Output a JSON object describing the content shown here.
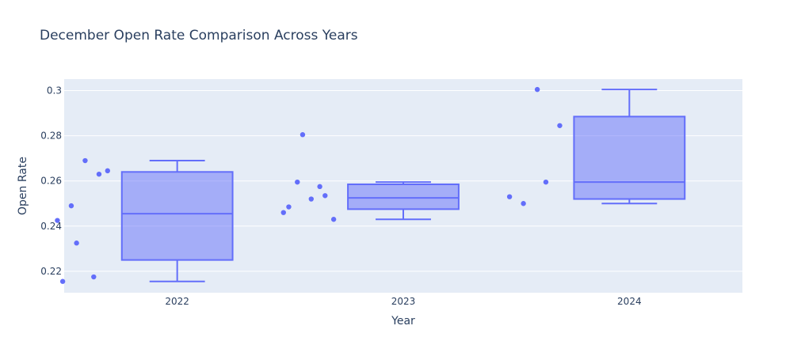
{
  "chart_data": {
    "type": "box",
    "title": "December Open Rate Comparison Across Years",
    "xlabel": "Year",
    "ylabel": "Open Rate",
    "categories": [
      "2022",
      "2023",
      "2024"
    ],
    "ylim": [
      0.2105,
      0.3051
    ],
    "yticks": [
      0.22,
      0.24,
      0.26,
      0.28,
      0.3
    ],
    "ytick_labels": [
      "0.22",
      "0.24",
      "0.26",
      "0.28",
      "0.3"
    ],
    "grid": true,
    "boxpoints": "all",
    "series": [
      {
        "category": "2022",
        "points": [
          0.2425,
          0.2175,
          0.249,
          0.2645,
          0.269,
          0.2155,
          0.263,
          0.2325
        ],
        "min": 0.2155,
        "q1": 0.225,
        "median": 0.2455,
        "q3": 0.264,
        "max": 0.269
      },
      {
        "category": "2023",
        "points": [
          0.246,
          0.2575,
          0.2595,
          0.243,
          0.252,
          0.2485,
          0.2535,
          0.2805
        ],
        "min": 0.243,
        "q1": 0.2475,
        "median": 0.2525,
        "q3": 0.2585,
        "max": 0.2595
      },
      {
        "category": "2024",
        "points": [
          0.253,
          0.2595,
          0.25,
          0.2845,
          0.3005
        ],
        "min": 0.25,
        "q1": 0.252,
        "median": 0.2595,
        "q3": 0.2885,
        "max": 0.3005
      }
    ],
    "colors": {
      "box_line": "#636efa",
      "box_fill": "rgba(99,110,250,0.5)",
      "point": "#636efa",
      "plot_bg": "#e5ecf6",
      "grid": "#ffffff",
      "text": "#2a3f5f"
    }
  }
}
